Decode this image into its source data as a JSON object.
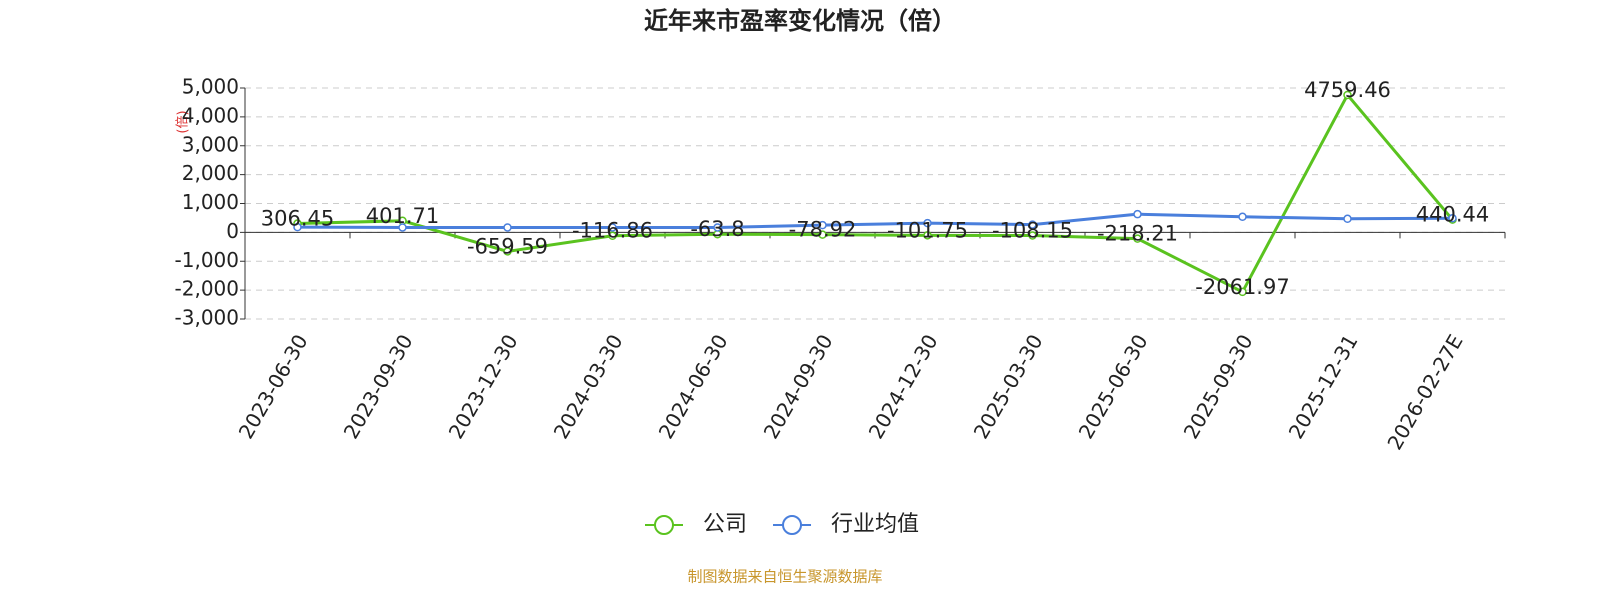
{
  "chart_data": {
    "type": "line",
    "title": "近年来市盈率变化情况（倍）",
    "y_axis_label": "(倍)",
    "source": "制图数据来自恒生聚源数据库",
    "categories": [
      "2023-06-30",
      "2023-09-30",
      "2023-12-30",
      "2024-03-30",
      "2024-06-30",
      "2024-09-30",
      "2024-12-30",
      "2025-03-30",
      "2025-06-30",
      "2025-09-30",
      "2025-12-31",
      "2026-02-27E"
    ],
    "series": [
      {
        "name": "公司",
        "color": "#5ac31f",
        "values": [
          306.45,
          401.71,
          -659.59,
          -116.86,
          -63.8,
          -78.92,
          -101.75,
          -108.15,
          -218.21,
          -2061.97,
          4759.46,
          440.44
        ]
      },
      {
        "name": "行业均值",
        "color": "#4a7fdc",
        "values": [
          180,
          170,
          170,
          170,
          170,
          250,
          320,
          270,
          630,
          540,
          470,
          490
        ]
      }
    ],
    "ylim": [
      -3000,
      5000
    ],
    "yticks": [
      {
        "value": -3000,
        "label": "-3,000"
      },
      {
        "value": -2000,
        "label": "-2,000"
      },
      {
        "value": -1000,
        "label": "-1,000"
      },
      0,
      {
        "value": 1000,
        "label": "1,000"
      },
      {
        "value": 2000,
        "label": "2,000"
      },
      {
        "value": 3000,
        "label": "3,000"
      },
      {
        "value": 4000,
        "label": "4,000"
      },
      {
        "value": 5000,
        "label": "5,000"
      }
    ],
    "grid": true,
    "data_labels_series": 0,
    "legend": "bottom"
  }
}
